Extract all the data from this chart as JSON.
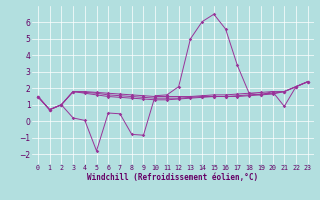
{
  "background_color": "#b2dfdf",
  "grid_color": "#ffffff",
  "line_color": "#993399",
  "xlabel": "Windchill (Refroidissement éolien,°C)",
  "xlim": [
    -0.5,
    23.5
  ],
  "ylim": [
    -2.6,
    7.0
  ],
  "yticks": [
    -2,
    -1,
    0,
    1,
    2,
    3,
    4,
    5,
    6
  ],
  "xtick_labels": [
    "0",
    "1",
    "2",
    "3",
    "4",
    "5",
    "6",
    "7",
    "8",
    "9",
    "10",
    "11",
    "12",
    "13",
    "14",
    "15",
    "16",
    "17",
    "18",
    "19",
    "20",
    "21",
    "22",
    "23"
  ],
  "line_swing_x": [
    0,
    1,
    2,
    3,
    4,
    5,
    6,
    7,
    8,
    9,
    10,
    11,
    12,
    13,
    14,
    15,
    16,
    17,
    18,
    19,
    20,
    21,
    22,
    23
  ],
  "line_swing_y": [
    1.5,
    0.7,
    1.0,
    0.2,
    0.05,
    -1.8,
    0.5,
    0.45,
    -0.8,
    -0.85,
    1.55,
    1.6,
    2.1,
    5.0,
    6.05,
    6.5,
    5.6,
    3.4,
    1.7,
    1.6,
    1.8,
    0.9,
    2.1,
    2.4
  ],
  "line_flat1_x": [
    0,
    1,
    2,
    3,
    4,
    5,
    6,
    7,
    8,
    9,
    10,
    11,
    12,
    13,
    14,
    15,
    16,
    17,
    18,
    19,
    20,
    21,
    22,
    23
  ],
  "line_flat1_y": [
    1.5,
    0.7,
    1.0,
    1.8,
    1.8,
    1.75,
    1.7,
    1.65,
    1.6,
    1.55,
    1.5,
    1.5,
    1.5,
    1.5,
    1.55,
    1.6,
    1.6,
    1.65,
    1.7,
    1.75,
    1.8,
    1.8,
    2.1,
    2.4
  ],
  "line_flat2_x": [
    0,
    1,
    2,
    3,
    4,
    5,
    6,
    7,
    8,
    9,
    10,
    11,
    12,
    13,
    14,
    15,
    16,
    17,
    18,
    19,
    20,
    21,
    22,
    23
  ],
  "line_flat2_y": [
    1.5,
    0.7,
    1.0,
    1.8,
    1.75,
    1.7,
    1.6,
    1.55,
    1.5,
    1.45,
    1.4,
    1.4,
    1.4,
    1.45,
    1.5,
    1.5,
    1.5,
    1.55,
    1.6,
    1.65,
    1.7,
    1.8,
    2.1,
    2.4
  ],
  "line_flat3_x": [
    0,
    1,
    2,
    3,
    4,
    5,
    6,
    7,
    8,
    9,
    10,
    11,
    12,
    13,
    14,
    15,
    16,
    17,
    18,
    19,
    20,
    21,
    22,
    23
  ],
  "line_flat3_y": [
    1.5,
    0.7,
    1.0,
    1.8,
    1.7,
    1.6,
    1.5,
    1.45,
    1.4,
    1.35,
    1.3,
    1.3,
    1.35,
    1.4,
    1.45,
    1.5,
    1.5,
    1.5,
    1.55,
    1.6,
    1.65,
    1.8,
    2.1,
    2.4
  ]
}
